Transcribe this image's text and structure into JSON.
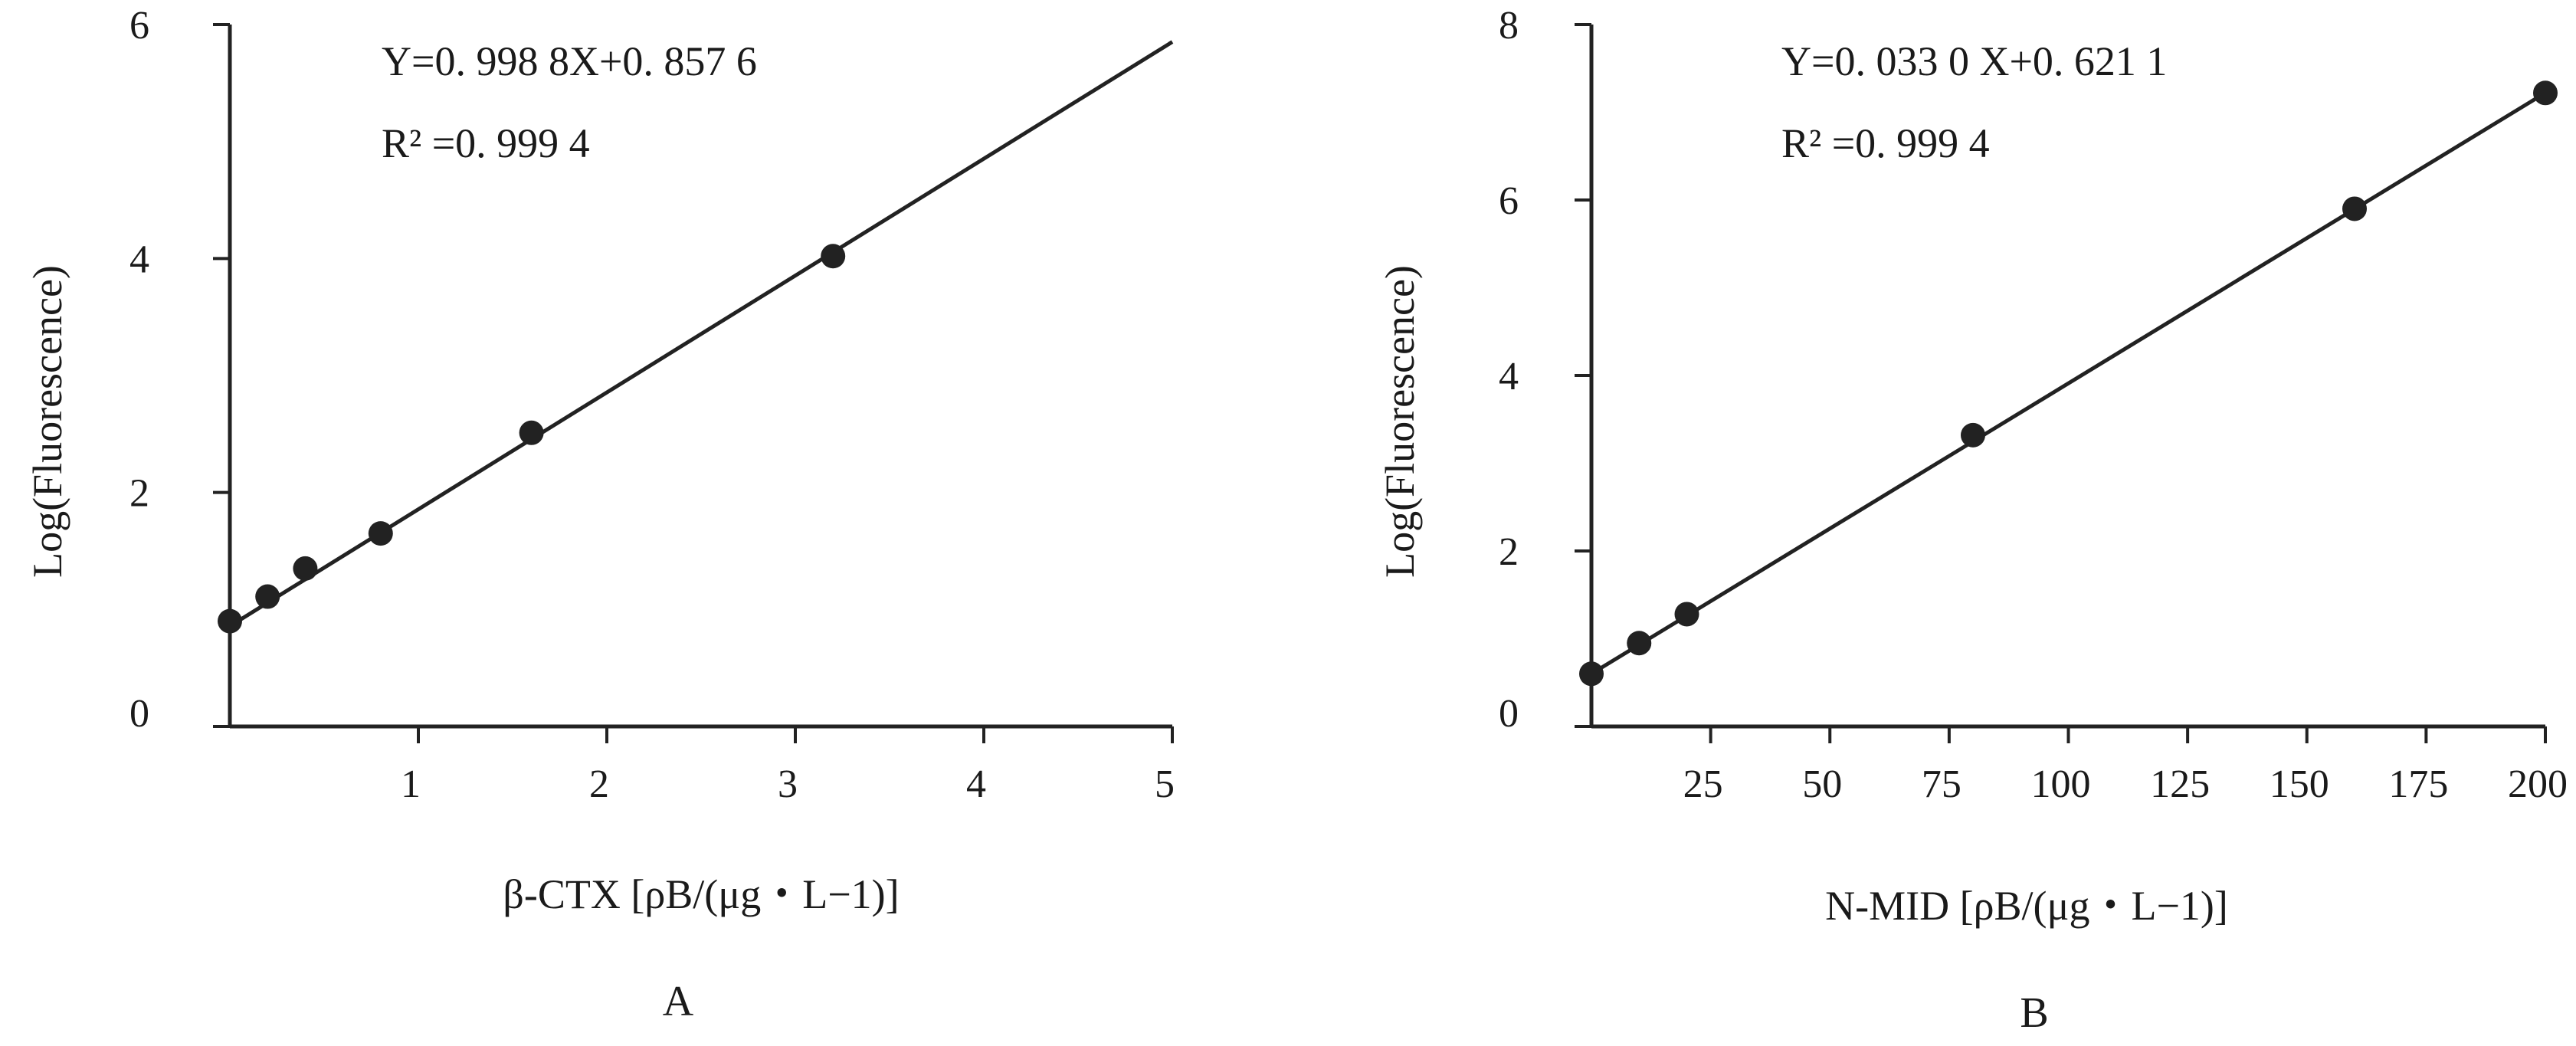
{
  "chart_data": [
    {
      "type": "scatter",
      "panel_label": "A",
      "xlabel": "β-CTX [ρB/(μg・L−1)]",
      "ylabel": "Log(Fluorescence)",
      "xlim": [
        0,
        5
      ],
      "ylim": [
        0,
        6
      ],
      "x_ticks": [
        "1",
        "2",
        "3",
        "4",
        "5"
      ],
      "y_ticks": [
        "0",
        "2",
        "4",
        "6"
      ],
      "equation": "Y=0. 998 8X+0. 857 6",
      "r_squared": "R² =0. 999 4",
      "fit": {
        "slope": 0.9988,
        "intercept": 0.8576
      },
      "points": {
        "x": [
          0,
          0.2,
          0.4,
          0.8,
          1.6,
          3.2
        ],
        "y": [
          0.9,
          1.11,
          1.35,
          1.65,
          2.51,
          4.02
        ]
      },
      "grid": false,
      "marker_color": "#222222",
      "line_color": "#222222"
    },
    {
      "type": "scatter",
      "panel_label": "B",
      "xlabel": "N-MID [ρB/(μg・L−1)]",
      "ylabel": "Log(Fluorescence)",
      "xlim": [
        0,
        200
      ],
      "ylim": [
        0,
        8
      ],
      "x_ticks": [
        "25",
        "50",
        "75",
        "100",
        "125",
        "150",
        "175",
        "200"
      ],
      "y_ticks": [
        "0",
        "2",
        "4",
        "6",
        "8"
      ],
      "equation": "Y=0. 033 0 X+0. 621 1",
      "r_squared": "R² =0. 999 4",
      "fit": {
        "slope": 0.033,
        "intercept": 0.6211
      },
      "points": {
        "x": [
          0,
          10,
          20,
          80,
          160,
          200
        ],
        "y": [
          0.6,
          0.95,
          1.28,
          3.32,
          5.9,
          7.22
        ]
      },
      "grid": false,
      "marker_color": "#222222",
      "line_color": "#222222"
    }
  ]
}
